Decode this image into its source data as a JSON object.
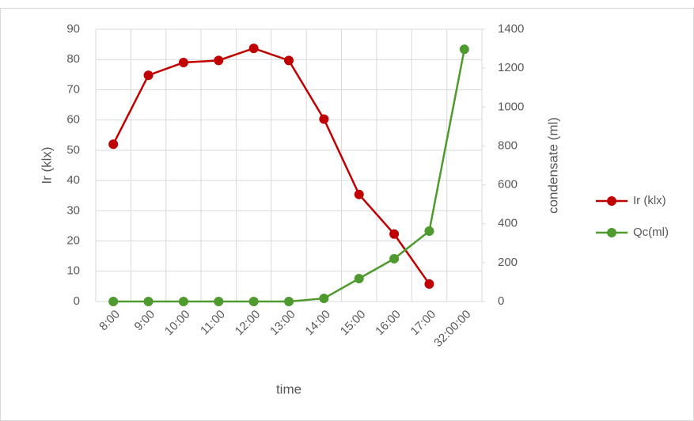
{
  "chart_data": {
    "type": "line",
    "categories": [
      "8:00",
      "9:00",
      "10:00",
      "11:00",
      "12:00",
      "13:00",
      "14:00",
      "15:00",
      "16:00",
      "17:00",
      "32:00:00"
    ],
    "series": [
      {
        "name": "Ir (klx)",
        "color": "#c00000",
        "values": [
          52,
          74.8,
          79,
          79.7,
          83.7,
          79.7,
          60.3,
          35.4,
          22.3,
          5.8,
          null
        ]
      },
      {
        "name": "Qc(ml)",
        "color": "#4e9a2e",
        "axis": "y2",
        "values": [
          0,
          0,
          0,
          0,
          0,
          0,
          16,
          118,
          220,
          362,
          1297
        ]
      }
    ],
    "x_label": "time",
    "y_label": "Ir (klx)",
    "y2_label": "condensate (ml)",
    "ylim": [
      0,
      90
    ],
    "yticks": [
      0,
      10,
      20,
      30,
      40,
      50,
      60,
      70,
      80,
      90
    ],
    "y2lim": [
      0,
      1400
    ],
    "y2ticks": [
      0,
      200,
      400,
      600,
      800,
      1000,
      1200,
      1400
    ],
    "grid": true,
    "legend": "right"
  }
}
